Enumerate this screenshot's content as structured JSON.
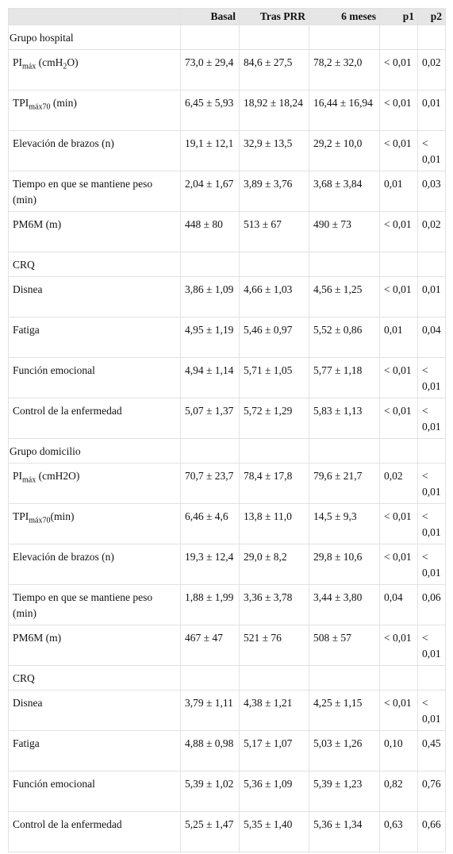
{
  "table": {
    "columns": [
      "Basal",
      "Tras PRR",
      "6 meses",
      "p1",
      "p2"
    ],
    "rows": [
      {
        "group": true,
        "label": [
          {
            "text": "Grupo hospital"
          }
        ]
      },
      {
        "label": [
          {
            "text": "PI"
          },
          {
            "text": "máx",
            "sub": true
          },
          {
            "text": " (cmH"
          },
          {
            "text": "2",
            "sub": true
          },
          {
            "text": "O)"
          }
        ],
        "cells": [
          "73,0 ± 29,4",
          "84,6 ± 27,5",
          "78,2 ± 32,0",
          "< 0,01",
          "0,02"
        ]
      },
      {
        "label": [
          {
            "text": "TPI"
          },
          {
            "text": "máx70",
            "sub": true
          },
          {
            "text": " (min)"
          }
        ],
        "cells": [
          "6,45 ± 5,93",
          "18,92 ± 18,24",
          "16,44 ± 16,94",
          "< 0,01",
          "0,01"
        ]
      },
      {
        "label": [
          {
            "text": "Elevación de brazos (n)"
          }
        ],
        "cells": [
          "19,1 ± 12,1",
          "32,9 ± 13,5",
          "29,2 ± 10,0",
          "< 0,01",
          "< 0,01"
        ]
      },
      {
        "label": [
          {
            "text": "Tiempo en que se mantiene peso (min)"
          }
        ],
        "cells": [
          "2,04 ± 1,67",
          "3,89 ± 3,76",
          "3,68 ± 3,84",
          "0,01",
          "0,03"
        ]
      },
      {
        "label": [
          {
            "text": "PM6M (m)"
          }
        ],
        "cells": [
          "448 ± 80",
          "513 ± 67",
          "490 ± 73",
          "< 0,01",
          "0,02"
        ]
      },
      {
        "section": true,
        "label": [
          {
            "text": "CRQ"
          }
        ]
      },
      {
        "label": [
          {
            "text": "Disnea"
          }
        ],
        "cells": [
          "3,86 ± 1,09",
          "4,66 ± 1,03",
          "4,56 ± 1,25",
          "< 0,01",
          "0,01"
        ]
      },
      {
        "label": [
          {
            "text": "Fatiga"
          }
        ],
        "cells": [
          "4,95 ± 1,19",
          "5,46 ± 0,97",
          "5,52 ± 0,86",
          "0,01",
          "0,04"
        ]
      },
      {
        "label": [
          {
            "text": "Función emocional"
          }
        ],
        "cells": [
          "4,94 ± 1,14",
          "5,71 ± 1,05",
          "5,77 ± 1,18",
          "< 0,01",
          "< 0,01"
        ]
      },
      {
        "label": [
          {
            "text": "Control de la enfermedad"
          }
        ],
        "cells": [
          "5,07 ± 1,37",
          "5,72 ± 1,29",
          "5,83 ± 1,13",
          "< 0,01",
          "< 0,01"
        ]
      },
      {
        "group": true,
        "label": [
          {
            "text": "Grupo domicilio"
          }
        ]
      },
      {
        "label": [
          {
            "text": "PI"
          },
          {
            "text": "máx",
            "sub": true
          },
          {
            "text": " (cmH2O)"
          }
        ],
        "cells": [
          "70,7 ± 23,7",
          "78,4 ± 17,8",
          "79,6 ± 21,7",
          "0,02",
          "< 0,01"
        ]
      },
      {
        "label": [
          {
            "text": "TPI"
          },
          {
            "text": "máx70",
            "sub": true
          },
          {
            "text": "(min)"
          }
        ],
        "cells": [
          "6,46 ± 4,6",
          "13,8 ± 11,0",
          "14,5 ± 9,3",
          "< 0,01",
          "< 0,01"
        ]
      },
      {
        "label": [
          {
            "text": "Elevación de brazos (n)"
          }
        ],
        "cells": [
          "19,3 ± 12,4",
          "29,0 ± 8,2",
          "29,8 ± 10,6",
          "< 0,01",
          "< 0,01"
        ]
      },
      {
        "label": [
          {
            "text": "Tiempo en que se mantiene peso (min)"
          }
        ],
        "cells": [
          "1,88 ± 1,99",
          "3,36 ± 3,78",
          "3,44 ± 3,80",
          "0,04",
          "0,06"
        ]
      },
      {
        "label": [
          {
            "text": "PM6M (m)"
          }
        ],
        "cells": [
          "467 ± 47",
          "521 ± 76",
          "508 ± 57",
          "< 0,01",
          "< 0,01"
        ]
      },
      {
        "section": true,
        "label": [
          {
            "text": "CRQ"
          }
        ]
      },
      {
        "label": [
          {
            "text": "Disnea"
          }
        ],
        "cells": [
          "3,79 ± 1,11",
          "4,38 ± 1,21",
          "4,25 ± 1,15",
          "< 0,01",
          "< 0,01"
        ]
      },
      {
        "label": [
          {
            "text": "Fatiga"
          }
        ],
        "cells": [
          "4,88 ± 0,98",
          "5,17 ± 1,07",
          "5,03 ± 1,26",
          "0,10",
          "0,45"
        ]
      },
      {
        "label": [
          {
            "text": "Función emocional"
          }
        ],
        "cells": [
          "5,39 ± 1,02",
          "5,36 ± 1,09",
          "5,39 ± 1,23",
          "0,82",
          "0,76"
        ]
      },
      {
        "label": [
          {
            "text": "Control de la enfermedad"
          }
        ],
        "cells": [
          "5,25 ± 1,47",
          "5,35 ± 1,40",
          "5,36 ± 1,34",
          "0,63",
          "0,66"
        ]
      }
    ]
  }
}
